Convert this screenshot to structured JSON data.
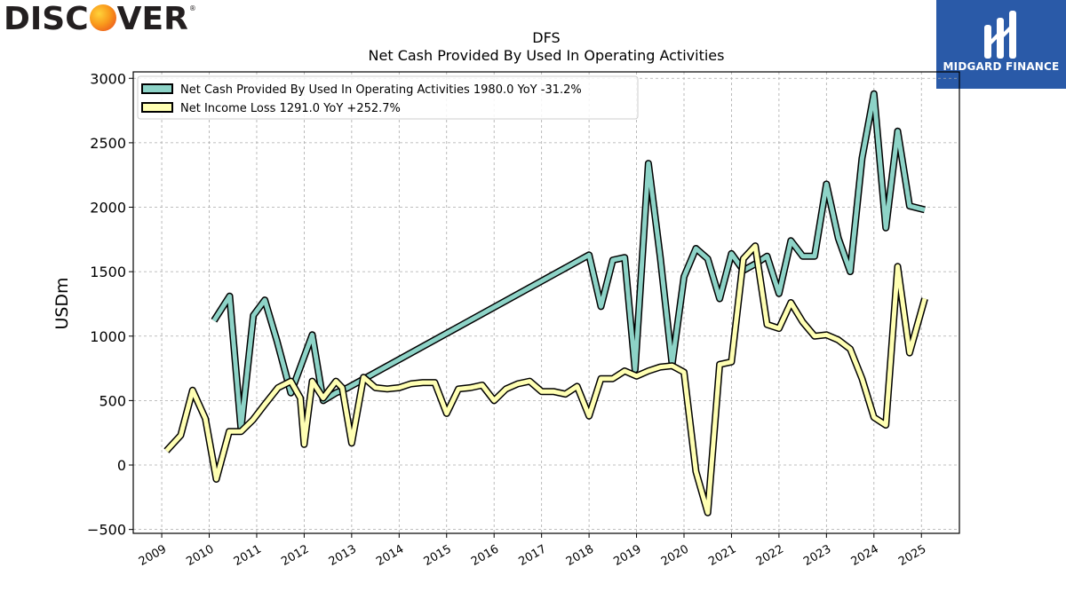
{
  "branding": {
    "left_logo_text_a": "DISC",
    "left_logo_text_b": "VER",
    "left_logo_reg": "®",
    "right_logo_name": "MIDGARD FINANCE",
    "colors": {
      "left_orb": "#f99a1c",
      "right_bg": "#2a5aa8"
    }
  },
  "chart_data": {
    "type": "line",
    "title": "DFS",
    "subtitle": "Net Cash Provided By Used In Operating Activities",
    "ylabel": "USDm",
    "xlabel": "",
    "ylim": [
      -530,
      3050
    ],
    "xlim": [
      2008.4,
      2025.8
    ],
    "yticks": [
      -500,
      0,
      500,
      1000,
      1500,
      2000,
      2500,
      3000
    ],
    "ytick_labels": [
      "−500",
      "0",
      "500",
      "1000",
      "1500",
      "2000",
      "2500",
      "3000"
    ],
    "xticks": [
      2009,
      2010,
      2011,
      2012,
      2013,
      2014,
      2015,
      2016,
      2017,
      2018,
      2019,
      2020,
      2021,
      2022,
      2023,
      2024,
      2025
    ],
    "xtick_labels": [
      "2009",
      "2010",
      "2011",
      "2012",
      "2013",
      "2014",
      "2015",
      "2016",
      "2017",
      "2018",
      "2019",
      "2020",
      "2021",
      "2022",
      "2023",
      "2024",
      "2025"
    ],
    "grid": true,
    "legend_position": "top-left",
    "series": [
      {
        "name": "Net Cash Provided By Used In Operating Activities  1980.0 YoY -31.2%",
        "color": "#8dd3c7",
        "x": [
          2010.1,
          2010.43,
          2010.67,
          2010.93,
          2011.17,
          2011.43,
          2011.72,
          2012.17,
          2012.4,
          2012.67,
          2012.92,
          2018.0,
          2018.25,
          2018.5,
          2018.75,
          2018.97,
          2019.25,
          2019.5,
          2019.75,
          2020.0,
          2020.25,
          2020.5,
          2020.75,
          2021.0,
          2021.25,
          2021.5,
          2021.75,
          2022.0,
          2022.25,
          2022.5,
          2022.75,
          2023.0,
          2023.25,
          2023.5,
          2023.75,
          2024.0,
          2024.25,
          2024.5,
          2024.75,
          2025.07
        ],
        "y": [
          1120,
          1310,
          280,
          1160,
          1280,
          960,
          560,
          1010,
          500,
          560,
          600,
          1630,
          1230,
          1590,
          1610,
          740,
          2340,
          1610,
          780,
          1460,
          1680,
          1600,
          1290,
          1640,
          1510,
          1560,
          1620,
          1330,
          1740,
          1620,
          1620,
          2180,
          1760,
          1500,
          2380,
          2880,
          1840,
          2590,
          2010,
          1980
        ]
      },
      {
        "name": "Net Income Loss  1291.0 YoY +252.7%",
        "color": "#ffffb3",
        "x": [
          2009.1,
          2009.4,
          2009.65,
          2009.92,
          2010.15,
          2010.42,
          2010.67,
          2010.92,
          2011.17,
          2011.45,
          2011.72,
          2011.92,
          2012.0,
          2012.17,
          2012.4,
          2012.67,
          2012.8,
          2013.0,
          2013.25,
          2013.5,
          2013.75,
          2014.0,
          2014.25,
          2014.5,
          2014.75,
          2015.0,
          2015.25,
          2015.5,
          2015.75,
          2016.0,
          2016.25,
          2016.5,
          2016.75,
          2017.0,
          2017.25,
          2017.5,
          2017.75,
          2018.0,
          2018.25,
          2018.5,
          2018.75,
          2019.0,
          2019.25,
          2019.5,
          2019.75,
          2020.0,
          2020.25,
          2020.5,
          2020.75,
          2021.0,
          2021.25,
          2021.5,
          2021.75,
          2022.0,
          2022.25,
          2022.5,
          2022.75,
          2023.0,
          2023.25,
          2023.5,
          2023.75,
          2024.0,
          2024.25,
          2024.5,
          2024.75,
          2025.07
        ],
        "y": [
          110,
          230,
          580,
          360,
          -110,
          260,
          260,
          350,
          470,
          600,
          650,
          520,
          160,
          650,
          520,
          650,
          600,
          170,
          680,
          600,
          590,
          600,
          630,
          640,
          640,
          400,
          590,
          600,
          620,
          500,
          590,
          630,
          650,
          570,
          570,
          550,
          610,
          380,
          670,
          670,
          730,
          690,
          730,
          760,
          770,
          720,
          -50,
          -370,
          780,
          800,
          1600,
          1700,
          1090,
          1060,
          1260,
          1110,
          1000,
          1010,
          970,
          900,
          670,
          370,
          310,
          1540,
          870,
          1291
        ]
      }
    ]
  }
}
